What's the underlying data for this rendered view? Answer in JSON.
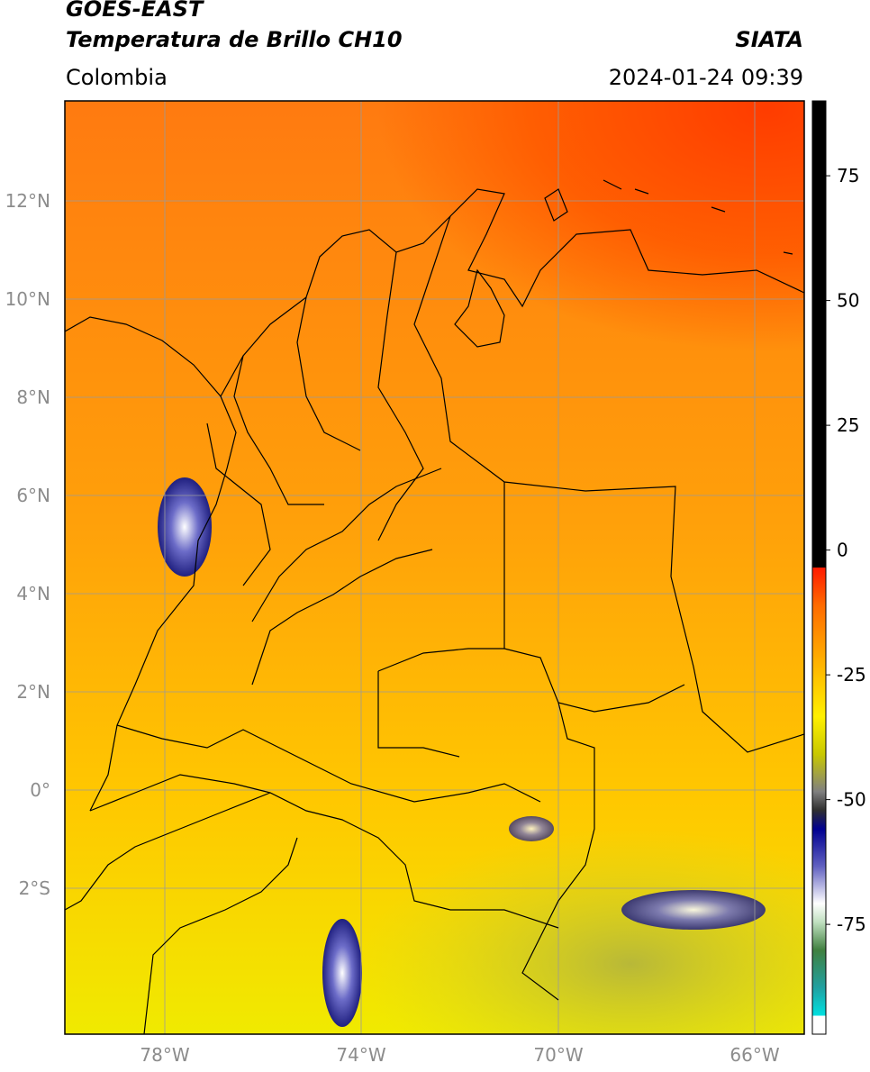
{
  "header": {
    "satellite": "GOES-EAST",
    "product": "Temperatura de Brillo CH10",
    "region": "Colombia",
    "source": "SIATA",
    "datetime": "2024-01-24 09:39"
  },
  "axes": {
    "lat_labels": [
      "12°N",
      "10°N",
      "8°N",
      "6°N",
      "4°N",
      "2°N",
      "0°",
      "2°S"
    ],
    "lon_labels": [
      "78°W",
      "74°W",
      "70°W",
      "66°W"
    ]
  },
  "colorbar": {
    "ticks": [
      "75",
      "50",
      "25",
      "0",
      "-25",
      "-50",
      "-75"
    ],
    "min": -97,
    "max": 90
  },
  "colors": {
    "hot": "#ff3b00",
    "warm": "#ff8c00",
    "mild": "#ffc800",
    "cool": "#fff200",
    "cold": "#9a9a30",
    "frame": "#000000",
    "grid": "#9a9a9a"
  }
}
